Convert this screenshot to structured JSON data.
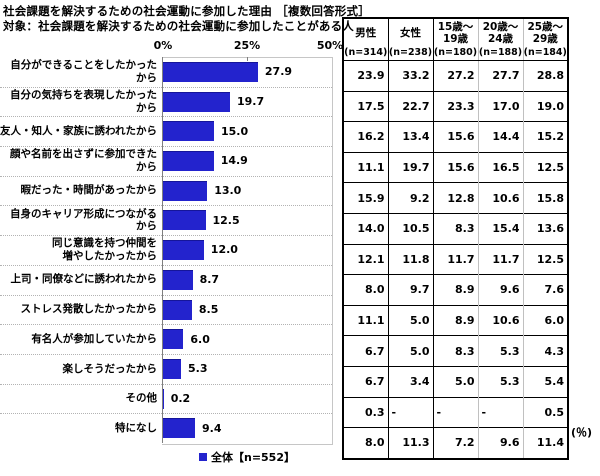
{
  "title": "社会課題を解決するための社会運動に参加した理由 ［複数回答形式］",
  "subtitle": "対象：社会課題を解決するための社会運動に参加したことがある人",
  "legend": {
    "label": "全体【n=552】",
    "color": "#2323cd"
  },
  "unit_label": "(％)",
  "chart_data": {
    "type": "bar",
    "orientation": "horizontal",
    "title": "社会課題を解決するための社会運動に参加した理由 ［複数回答形式］",
    "xlim": [
      0,
      50
    ],
    "x_ticks": [
      "0%",
      "25%",
      "50%"
    ],
    "unit": "%",
    "grid": "horizontal-dotted",
    "legend_position": "bottom",
    "overall_name": "全体【n=552】",
    "categories": [
      "自分ができることをしたかったから",
      "自分の気持ちを表現したかったから",
      "友人・知人・家族に誘われたから",
      "顔や名前を出さずに参加できたから",
      "暇だった・時間があったから",
      "自身のキャリア形成につながるから",
      "同じ意識を持つ仲間を\n増やしたかったから",
      "上司・同僚などに誘われたから",
      "ストレス発散したかったから",
      "有名人が参加していたから",
      "楽しそうだったから",
      "その他",
      "特になし"
    ],
    "values": [
      27.9,
      19.7,
      15.0,
      14.9,
      13.0,
      12.5,
      12.0,
      8.7,
      8.5,
      6.0,
      5.3,
      0.2,
      9.4
    ],
    "series": [
      {
        "name": "男性",
        "n_label": "(n=314)",
        "values": [
          23.9,
          17.5,
          16.2,
          11.1,
          15.9,
          14.0,
          12.1,
          8.0,
          11.1,
          6.7,
          6.7,
          0.3,
          8.0
        ]
      },
      {
        "name": "女性",
        "n_label": "(n=238)",
        "values": [
          33.2,
          22.7,
          13.4,
          19.7,
          9.2,
          10.5,
          11.8,
          9.7,
          5.0,
          5.0,
          3.4,
          "-",
          11.3
        ]
      },
      {
        "name": "15歳～\n19歳",
        "n_label": "(n=180)",
        "values": [
          27.2,
          23.3,
          15.6,
          15.6,
          12.8,
          8.3,
          11.7,
          8.9,
          8.9,
          8.3,
          5.0,
          "-",
          7.2
        ]
      },
      {
        "name": "20歳～\n24歳",
        "n_label": "(n=188)",
        "values": [
          27.7,
          17.0,
          14.4,
          16.5,
          10.6,
          15.4,
          11.7,
          9.6,
          10.6,
          5.3,
          5.3,
          "-",
          9.6
        ]
      },
      {
        "name": "25歳～\n29歳",
        "n_label": "(n=184)",
        "values": [
          28.8,
          19.0,
          15.2,
          12.5,
          15.8,
          13.6,
          12.5,
          7.6,
          6.0,
          4.3,
          5.4,
          0.5,
          11.4
        ]
      }
    ]
  }
}
